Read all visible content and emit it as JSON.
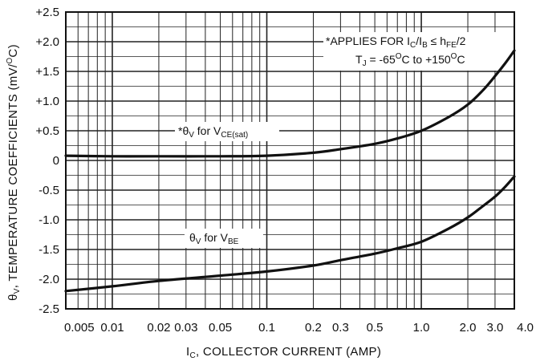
{
  "chart_data": {
    "type": "line",
    "xscale": "log",
    "xlim": [
      0.005,
      4.0
    ],
    "ylim": [
      -2.5,
      2.5
    ],
    "grid": true,
    "xticks": [
      "0.005",
      "0.01",
      "0.02",
      "0.03",
      "0.05",
      "0.1",
      "0.2",
      "0.3",
      "0.5",
      "1.0",
      "2.0",
      "3.0",
      "4.0"
    ],
    "xtick_values": [
      0.005,
      0.01,
      0.02,
      0.03,
      0.05,
      0.1,
      0.2,
      0.3,
      0.5,
      1.0,
      2.0,
      3.0,
      4.0
    ],
    "yticks": [
      "+2.5",
      "+2.0",
      "+1.5",
      "+1.0",
      "+0.5",
      "0",
      "-0.5",
      "-1.0",
      "-1.5",
      "-2.0",
      "-2.5"
    ],
    "ytick_values": [
      2.5,
      2.0,
      1.5,
      1.0,
      0.5,
      0,
      -0.5,
      -1.0,
      -1.5,
      -2.0,
      -2.5
    ],
    "xlabel": {
      "main": "I",
      "sub": "C",
      "rest": ", COLLECTOR CURRENT (AMP)"
    },
    "ylabel": {
      "main": "θ",
      "sub": "V",
      "rest": ", TEMPERATURE COEFFICIENTS (mV/",
      "sup": "O",
      "end": "C)"
    },
    "series": [
      {
        "label": {
          "prefix": "*θ",
          "sub1": "V",
          "mid": " for V",
          "sub2": "CE(sat)"
        },
        "x": [
          0.005,
          0.01,
          0.02,
          0.05,
          0.1,
          0.2,
          0.3,
          0.5,
          0.7,
          1.0,
          1.5,
          2.0,
          2.5,
          3.0,
          3.5,
          4.0
        ],
        "y": [
          0.08,
          0.07,
          0.07,
          0.07,
          0.08,
          0.13,
          0.19,
          0.28,
          0.37,
          0.5,
          0.73,
          0.94,
          1.18,
          1.42,
          1.64,
          1.85
        ]
      },
      {
        "label": {
          "prefix": "θ",
          "sub1": "V",
          "mid": " for V",
          "sub2": "BE"
        },
        "x": [
          0.005,
          0.01,
          0.02,
          0.05,
          0.1,
          0.2,
          0.3,
          0.5,
          0.7,
          1.0,
          1.5,
          2.0,
          2.5,
          3.0,
          3.5,
          4.0
        ],
        "y": [
          -2.2,
          -2.12,
          -2.03,
          -1.94,
          -1.87,
          -1.77,
          -1.68,
          -1.57,
          -1.48,
          -1.37,
          -1.15,
          -0.96,
          -0.77,
          -0.61,
          -0.44,
          -0.27
        ]
      }
    ],
    "notes": [
      {
        "a": "*APPLIES FOR I",
        "a_sub": "C",
        "b": "/I",
        "b_sub": "B",
        "c": " ≤ h",
        "c_sub": "FE",
        "d": "/2"
      },
      {
        "a": "T",
        "a_sub": "J",
        "b": " = -65",
        "b_sup": "O",
        "c": "C to +150",
        "c_sup": "O",
        "d": "C"
      }
    ]
  }
}
